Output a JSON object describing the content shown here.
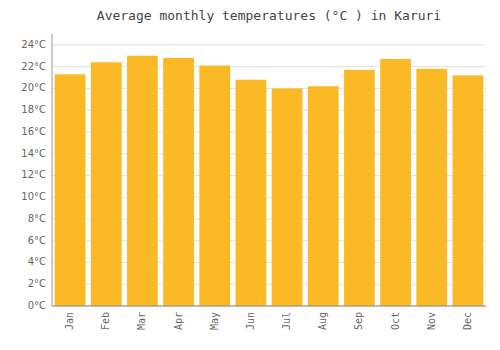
{
  "chart_data": {
    "type": "bar",
    "title": "Average monthly temperatures (°C ) in Karuri",
    "categories": [
      "Jan",
      "Feb",
      "Mar",
      "Apr",
      "May",
      "Jun",
      "Jul",
      "Aug",
      "Sep",
      "Oct",
      "Nov",
      "Dec"
    ],
    "values": [
      21.3,
      22.4,
      23.0,
      22.8,
      22.1,
      20.8,
      20.0,
      20.2,
      21.7,
      22.7,
      21.8,
      21.2
    ],
    "color": "#FBBA25",
    "ylim": [
      0,
      25
    ],
    "yticks": [
      {
        "value": 0,
        "label": "0°C"
      },
      {
        "value": 2,
        "label": "2°C"
      },
      {
        "value": 4,
        "label": "4°C"
      },
      {
        "value": 6,
        "label": "6°C"
      },
      {
        "value": 8,
        "label": "8°C"
      },
      {
        "value": 10,
        "label": "10°C"
      },
      {
        "value": 12,
        "label": "12°C"
      },
      {
        "value": 14,
        "label": "14°C"
      },
      {
        "value": 16,
        "label": "16°C"
      },
      {
        "value": 18,
        "label": "18°C"
      },
      {
        "value": 20,
        "label": "20°C"
      },
      {
        "value": 22,
        "label": "22°C"
      },
      {
        "value": 24,
        "label": "24°C"
      }
    ],
    "grid": true
  }
}
